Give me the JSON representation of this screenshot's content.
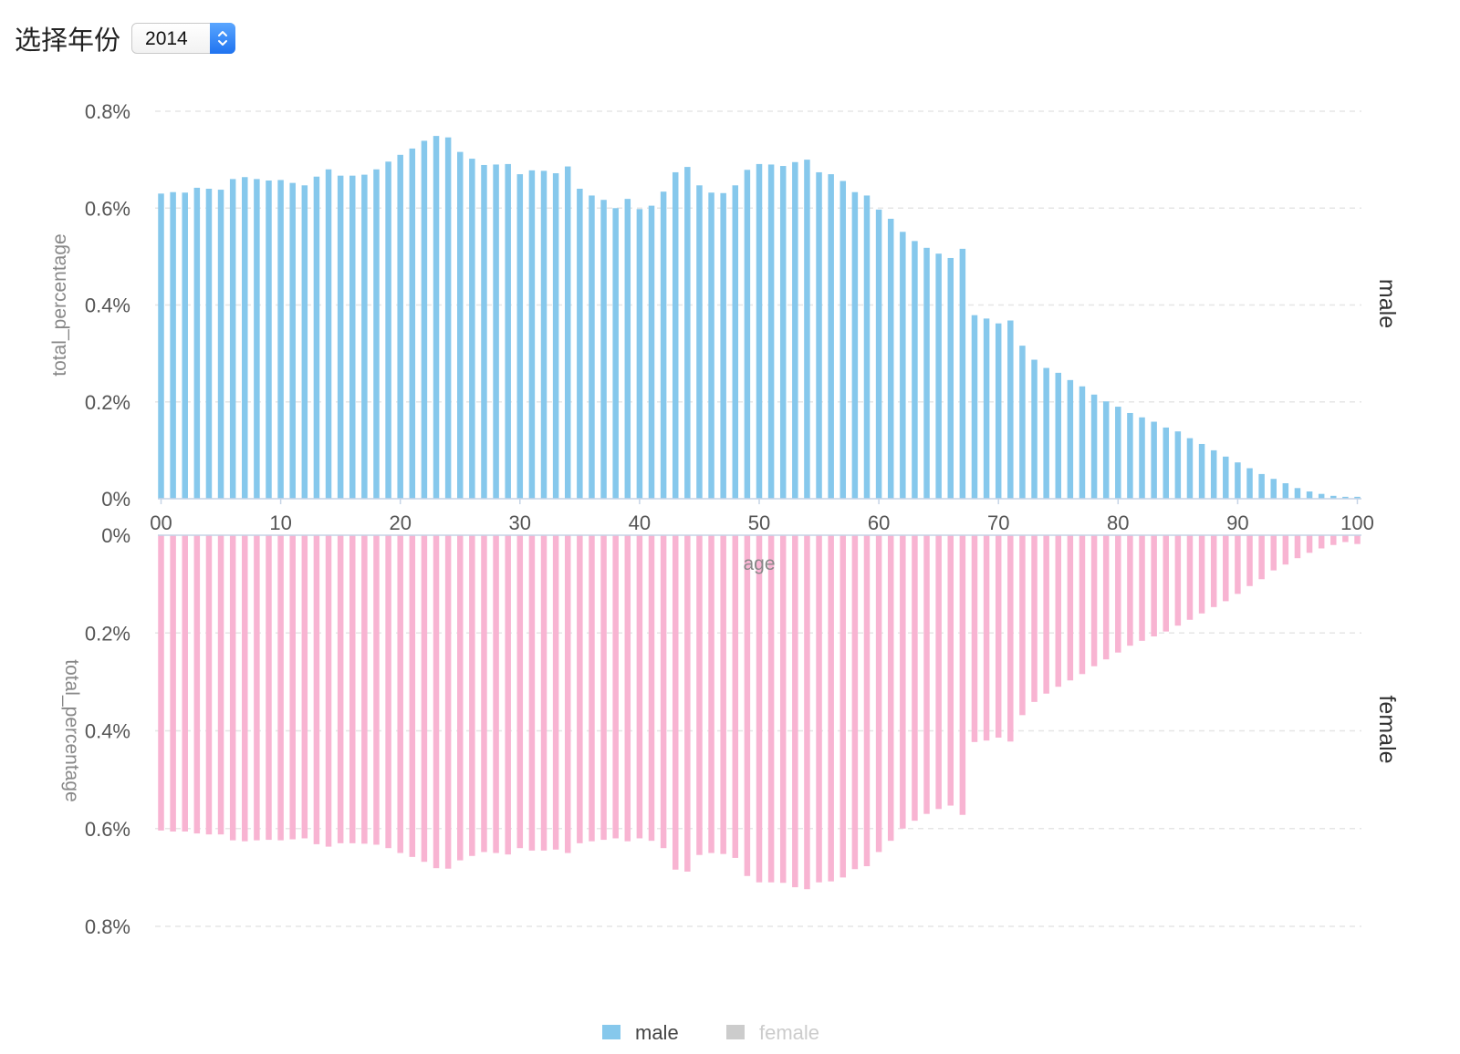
{
  "toolbar": {
    "label": "选择年份",
    "year_select": {
      "value": "2014",
      "icon": "chevron-updown-icon"
    }
  },
  "colors": {
    "male": "#86c8ec",
    "female": "#f8b4d2",
    "legend_inactive": "#cccccc",
    "grid": "#e6e6e6",
    "axis": "#c6d4e6",
    "text": "#555555",
    "axis_title": "#888888"
  },
  "chart_data": {
    "type": "bar",
    "layout": "mirrored-panels",
    "x": [
      0,
      1,
      2,
      3,
      4,
      5,
      6,
      7,
      8,
      9,
      10,
      11,
      12,
      13,
      14,
      15,
      16,
      17,
      18,
      19,
      20,
      21,
      22,
      23,
      24,
      25,
      26,
      27,
      28,
      29,
      30,
      31,
      32,
      33,
      34,
      35,
      36,
      37,
      38,
      39,
      40,
      41,
      42,
      43,
      44,
      45,
      46,
      47,
      48,
      49,
      50,
      51,
      52,
      53,
      54,
      55,
      56,
      57,
      58,
      59,
      60,
      61,
      62,
      63,
      64,
      65,
      66,
      67,
      68,
      69,
      70,
      71,
      72,
      73,
      74,
      75,
      76,
      77,
      78,
      79,
      80,
      81,
      82,
      83,
      84,
      85,
      86,
      87,
      88,
      89,
      90,
      91,
      92,
      93,
      94,
      95,
      96,
      97,
      98,
      99,
      100
    ],
    "x_ticks": [
      "00",
      "10",
      "20",
      "30",
      "40",
      "50",
      "60",
      "70",
      "80",
      "90",
      "100"
    ],
    "x_tick_values": [
      0,
      10,
      20,
      30,
      40,
      50,
      60,
      70,
      80,
      90,
      100
    ],
    "xlabel": "age",
    "xlim": [
      0,
      100
    ],
    "panels": [
      {
        "facet": "male",
        "ylabel": "total_percentage",
        "ylim": [
          0,
          0.8
        ],
        "y_ticks": [
          "0%",
          "0.2%",
          "0.4%",
          "0.6%",
          "0.8%"
        ],
        "direction": "up"
      },
      {
        "facet": "female",
        "ylabel": "total_percentage",
        "ylim": [
          0,
          0.8
        ],
        "y_ticks": [
          "0%",
          "0.2%",
          "0.4%",
          "0.6%",
          "0.8%"
        ],
        "direction": "down"
      }
    ],
    "series": [
      {
        "name": "male",
        "values": [
          0.63,
          0.633,
          0.632,
          0.642,
          0.64,
          0.638,
          0.66,
          0.664,
          0.66,
          0.657,
          0.658,
          0.652,
          0.647,
          0.665,
          0.68,
          0.667,
          0.667,
          0.669,
          0.68,
          0.696,
          0.71,
          0.723,
          0.739,
          0.749,
          0.746,
          0.716,
          0.702,
          0.689,
          0.69,
          0.691,
          0.67,
          0.678,
          0.677,
          0.672,
          0.686,
          0.64,
          0.626,
          0.617,
          0.6,
          0.619,
          0.598,
          0.605,
          0.634,
          0.674,
          0.685,
          0.647,
          0.632,
          0.631,
          0.647,
          0.679,
          0.691,
          0.69,
          0.687,
          0.695,
          0.7,
          0.674,
          0.67,
          0.656,
          0.633,
          0.626,
          0.597,
          0.578,
          0.551,
          0.532,
          0.518,
          0.506,
          0.497,
          0.516,
          0.379,
          0.372,
          0.362,
          0.368,
          0.316,
          0.287,
          0.27,
          0.26,
          0.245,
          0.232,
          0.215,
          0.201,
          0.19,
          0.177,
          0.168,
          0.159,
          0.147,
          0.139,
          0.125,
          0.113,
          0.1,
          0.087,
          0.075,
          0.063,
          0.051,
          0.041,
          0.032,
          0.022,
          0.015,
          0.01,
          0.006,
          0.004,
          0.004
        ]
      },
      {
        "name": "female",
        "values": [
          0.604,
          0.606,
          0.606,
          0.61,
          0.612,
          0.612,
          0.624,
          0.626,
          0.624,
          0.623,
          0.624,
          0.622,
          0.62,
          0.632,
          0.637,
          0.63,
          0.63,
          0.631,
          0.633,
          0.64,
          0.65,
          0.658,
          0.668,
          0.681,
          0.682,
          0.665,
          0.656,
          0.648,
          0.65,
          0.653,
          0.64,
          0.645,
          0.645,
          0.643,
          0.65,
          0.63,
          0.626,
          0.623,
          0.62,
          0.626,
          0.62,
          0.625,
          0.64,
          0.684,
          0.688,
          0.654,
          0.65,
          0.652,
          0.66,
          0.697,
          0.71,
          0.71,
          0.711,
          0.72,
          0.724,
          0.71,
          0.708,
          0.7,
          0.683,
          0.677,
          0.648,
          0.625,
          0.6,
          0.584,
          0.57,
          0.56,
          0.553,
          0.572,
          0.423,
          0.42,
          0.414,
          0.422,
          0.368,
          0.341,
          0.324,
          0.31,
          0.297,
          0.284,
          0.268,
          0.254,
          0.24,
          0.226,
          0.216,
          0.207,
          0.197,
          0.185,
          0.173,
          0.16,
          0.147,
          0.135,
          0.12,
          0.104,
          0.09,
          0.072,
          0.06,
          0.047,
          0.036,
          0.027,
          0.02,
          0.014,
          0.018
        ]
      }
    ],
    "legend": {
      "position": "bottom-center",
      "entries": [
        {
          "label": "male",
          "active": true
        },
        {
          "label": "female",
          "active": false
        }
      ]
    },
    "grid": true
  }
}
